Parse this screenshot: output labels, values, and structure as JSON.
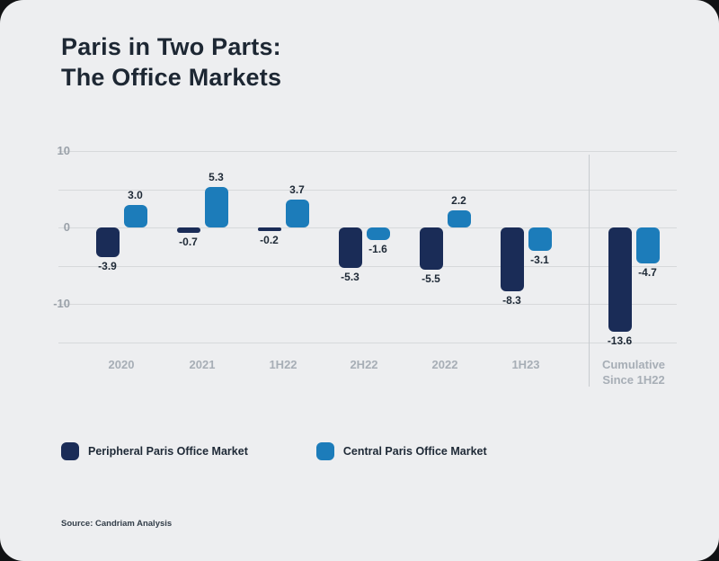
{
  "page": {
    "title_line1": "Paris in Two Parts:",
    "title_line2": "The Office Markets",
    "source": "Source: Candriam Analysis"
  },
  "legend": {
    "items": [
      {
        "label": "Peripheral Paris Office Market",
        "color": "#1a2c57"
      },
      {
        "label": "Central Paris Office Market",
        "color": "#1c7cba"
      }
    ]
  },
  "chart_data": {
    "type": "bar",
    "title": "Paris in Two Parts: The Office Markets",
    "categories": [
      "2020",
      "2021",
      "1H22",
      "2H22",
      "2022",
      "1H23",
      "Cumulative\nSince 1H22"
    ],
    "series": [
      {
        "name": "Peripheral Paris Office Market",
        "color": "#1a2c57",
        "values": [
          -3.9,
          -0.7,
          -0.2,
          -5.3,
          -5.5,
          -8.3,
          -13.6
        ],
        "labels": [
          "-3.9",
          "-0.7",
          "-0.2",
          "-5.3",
          "-5.5",
          "-8.3",
          "-13.6"
        ]
      },
      {
        "name": "Central Paris Office Market",
        "color": "#1c7cba",
        "values": [
          3.0,
          5.3,
          3.7,
          -1.6,
          2.2,
          -3.1,
          -4.7
        ],
        "labels": [
          "3.0",
          "5.3",
          "3.7",
          "-1.6",
          "2.2",
          "-3.1",
          "-4.7"
        ]
      }
    ],
    "y_ticks": [
      "10",
      "0",
      "-10"
    ],
    "y_tick_values": [
      10,
      0,
      -10
    ],
    "gridline_values": [
      10,
      5,
      0,
      -5,
      -10,
      -15
    ],
    "ylim": [
      -16,
      11
    ],
    "grid": true,
    "legend_position": "bottom",
    "separator_before_category": "Cumulative\nSince 1H22"
  }
}
